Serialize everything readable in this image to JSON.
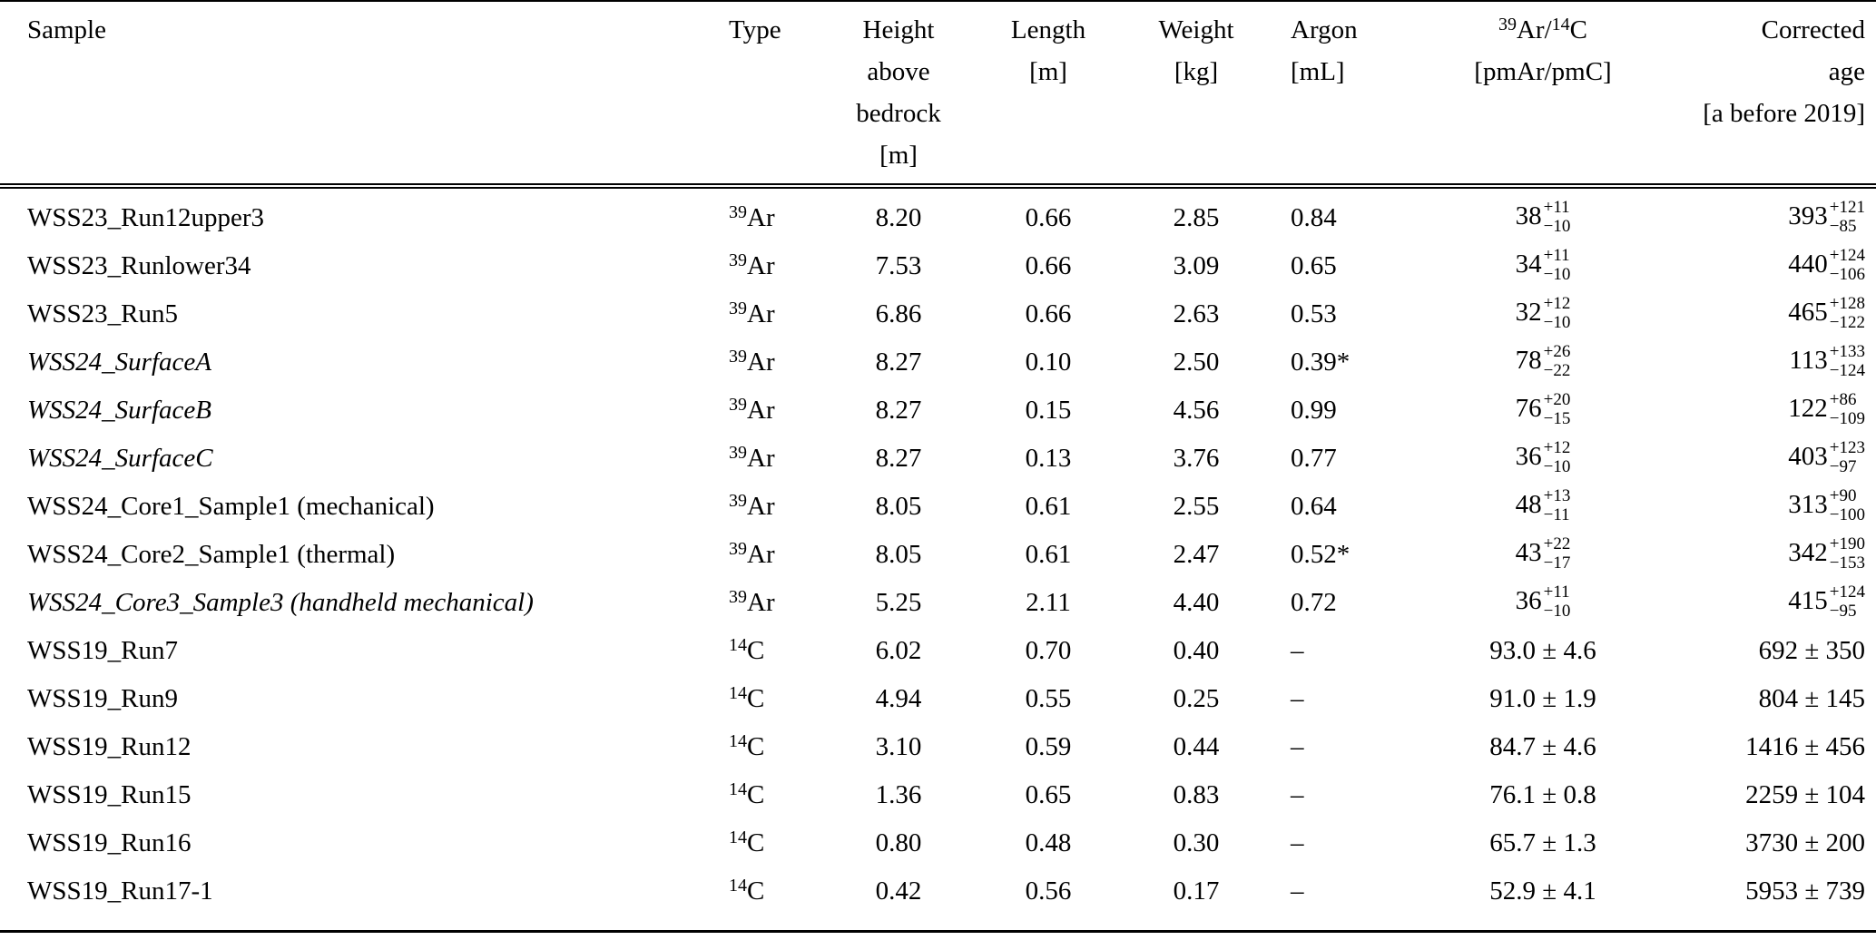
{
  "page": {
    "background_color": "#ffffff",
    "text_color": "#000000",
    "description": "Sample overview table with 39Ar and 14C dating results"
  },
  "table": {
    "columns": [
      {
        "id": "sample",
        "align": "left",
        "header_lines": [
          [
            {
              "t": "Sample"
            }
          ]
        ]
      },
      {
        "id": "type",
        "align": "left",
        "header_lines": [
          [
            {
              "t": "Type"
            }
          ]
        ]
      },
      {
        "id": "height",
        "align": "center",
        "header_lines": [
          [
            {
              "t": "Height"
            }
          ],
          [
            {
              "t": "above"
            }
          ],
          [
            {
              "t": "bedrock"
            }
          ],
          [
            {
              "t": "[m]"
            }
          ]
        ]
      },
      {
        "id": "length",
        "align": "center",
        "header_lines": [
          [
            {
              "t": "Length"
            }
          ],
          [
            {
              "t": "[m]"
            }
          ]
        ]
      },
      {
        "id": "weight",
        "align": "center",
        "header_lines": [
          [
            {
              "t": "Weight"
            }
          ],
          [
            {
              "t": "[kg]"
            }
          ]
        ]
      },
      {
        "id": "argon",
        "align": "left",
        "header_lines": [
          [
            {
              "t": "Argon"
            }
          ],
          [
            {
              "t": "[mL]"
            }
          ]
        ]
      },
      {
        "id": "ratio",
        "align": "center",
        "header_lines": [
          [
            {
              "sup": "39"
            },
            {
              "t": "Ar/"
            },
            {
              "sup": "14"
            },
            {
              "t": "C"
            }
          ],
          [
            {
              "t": "[pmAr/pmC]"
            }
          ]
        ]
      },
      {
        "id": "age",
        "align": "right",
        "header_lines": [
          [
            {
              "t": "Corrected"
            }
          ],
          [
            {
              "t": "age"
            }
          ],
          [
            {
              "t": "[a before 2019]"
            }
          ]
        ]
      }
    ],
    "rows": [
      {
        "cells": [
          {
            "text": "WSS23_Run12upper3",
            "italic": false
          },
          {
            "tokens": [
              {
                "sup": "39"
              },
              {
                "t": "Ar"
              }
            ]
          },
          {
            "text": "8.20"
          },
          {
            "text": "0.66"
          },
          {
            "text": "2.85"
          },
          {
            "text": "0.84"
          },
          {
            "text": "38",
            "plus": "+11",
            "minus": "−10"
          },
          {
            "text": "393",
            "plus": "+121",
            "minus": "−85"
          }
        ]
      },
      {
        "cells": [
          {
            "text": "WSS23_Runlower34",
            "italic": false
          },
          {
            "tokens": [
              {
                "sup": "39"
              },
              {
                "t": "Ar"
              }
            ]
          },
          {
            "text": "7.53"
          },
          {
            "text": "0.66"
          },
          {
            "text": "3.09"
          },
          {
            "text": "0.65"
          },
          {
            "text": "34",
            "plus": "+11",
            "minus": "−10"
          },
          {
            "text": "440",
            "plus": "+124",
            "minus": "−106"
          }
        ]
      },
      {
        "cells": [
          {
            "text": "WSS23_Run5",
            "italic": false
          },
          {
            "tokens": [
              {
                "sup": "39"
              },
              {
                "t": "Ar"
              }
            ]
          },
          {
            "text": "6.86"
          },
          {
            "text": "0.66"
          },
          {
            "text": "2.63"
          },
          {
            "text": "0.53"
          },
          {
            "text": "32",
            "plus": "+12",
            "minus": "−10"
          },
          {
            "text": "465",
            "plus": "+128",
            "minus": "−122"
          }
        ]
      },
      {
        "cells": [
          {
            "text": "WSS24_SurfaceA",
            "italic": true
          },
          {
            "tokens": [
              {
                "sup": "39"
              },
              {
                "t": "Ar"
              }
            ]
          },
          {
            "text": "8.27"
          },
          {
            "text": "0.10"
          },
          {
            "text": "2.50"
          },
          {
            "text": "0.39*"
          },
          {
            "text": "78",
            "plus": "+26",
            "minus": "−22"
          },
          {
            "text": "113",
            "plus": "+133",
            "minus": "−124"
          }
        ]
      },
      {
        "cells": [
          {
            "text": "WSS24_SurfaceB",
            "italic": true
          },
          {
            "tokens": [
              {
                "sup": "39"
              },
              {
                "t": "Ar"
              }
            ]
          },
          {
            "text": "8.27"
          },
          {
            "text": "0.15"
          },
          {
            "text": "4.56"
          },
          {
            "text": "0.99"
          },
          {
            "text": "76",
            "plus": "+20",
            "minus": "−15"
          },
          {
            "text": "122",
            "plus": "+86",
            "minus": "−109"
          }
        ]
      },
      {
        "cells": [
          {
            "text": "WSS24_SurfaceC",
            "italic": true
          },
          {
            "tokens": [
              {
                "sup": "39"
              },
              {
                "t": "Ar"
              }
            ]
          },
          {
            "text": "8.27"
          },
          {
            "text": "0.13"
          },
          {
            "text": "3.76"
          },
          {
            "text": "0.77"
          },
          {
            "text": "36",
            "plus": "+12",
            "minus": "−10"
          },
          {
            "text": "403",
            "plus": "+123",
            "minus": "−97"
          }
        ]
      },
      {
        "cells": [
          {
            "text": "WSS24_Core1_Sample1 (mechanical)",
            "italic": false
          },
          {
            "tokens": [
              {
                "sup": "39"
              },
              {
                "t": "Ar"
              }
            ]
          },
          {
            "text": "8.05"
          },
          {
            "text": "0.61"
          },
          {
            "text": "2.55"
          },
          {
            "text": "0.64"
          },
          {
            "text": "48",
            "plus": "+13",
            "minus": "−11"
          },
          {
            "text": "313",
            "plus": "+90",
            "minus": "−100"
          }
        ]
      },
      {
        "cells": [
          {
            "text": "WSS24_Core2_Sample1 (thermal)",
            "italic": false
          },
          {
            "tokens": [
              {
                "sup": "39"
              },
              {
                "t": "Ar"
              }
            ]
          },
          {
            "text": "8.05"
          },
          {
            "text": "0.61"
          },
          {
            "text": "2.47"
          },
          {
            "text": "0.52*"
          },
          {
            "text": "43",
            "plus": "+22",
            "minus": "−17"
          },
          {
            "text": "342",
            "plus": "+190",
            "minus": "−153"
          }
        ]
      },
      {
        "cells": [
          {
            "text": "WSS24_Core3_Sample3 (handheld mechanical)",
            "italic": true
          },
          {
            "tokens": [
              {
                "sup": "39"
              },
              {
                "t": "Ar"
              }
            ]
          },
          {
            "text": "5.25"
          },
          {
            "text": "2.11"
          },
          {
            "text": "4.40"
          },
          {
            "text": "0.72"
          },
          {
            "text": "36",
            "plus": "+11",
            "minus": "−10"
          },
          {
            "text": "415",
            "plus": "+124",
            "minus": "−95"
          }
        ]
      },
      {
        "cells": [
          {
            "text": "WSS19_Run7",
            "italic": false
          },
          {
            "tokens": [
              {
                "sup": "14"
              },
              {
                "t": "C"
              }
            ]
          },
          {
            "text": "6.02"
          },
          {
            "text": "0.70"
          },
          {
            "text": "0.40"
          },
          {
            "text": "–"
          },
          {
            "text": "93.0 ± 4.6"
          },
          {
            "text": "692 ± 350"
          }
        ]
      },
      {
        "cells": [
          {
            "text": "WSS19_Run9",
            "italic": false
          },
          {
            "tokens": [
              {
                "sup": "14"
              },
              {
                "t": "C"
              }
            ]
          },
          {
            "text": "4.94"
          },
          {
            "text": "0.55"
          },
          {
            "text": "0.25"
          },
          {
            "text": "–"
          },
          {
            "text": "91.0 ± 1.9"
          },
          {
            "text": "804 ± 145"
          }
        ]
      },
      {
        "cells": [
          {
            "text": "WSS19_Run12",
            "italic": false
          },
          {
            "tokens": [
              {
                "sup": "14"
              },
              {
                "t": "C"
              }
            ]
          },
          {
            "text": "3.10"
          },
          {
            "text": "0.59"
          },
          {
            "text": "0.44"
          },
          {
            "text": "–"
          },
          {
            "text": "84.7 ± 4.6"
          },
          {
            "text": "1416 ± 456"
          }
        ]
      },
      {
        "cells": [
          {
            "text": "WSS19_Run15",
            "italic": false
          },
          {
            "tokens": [
              {
                "sup": "14"
              },
              {
                "t": "C"
              }
            ]
          },
          {
            "text": "1.36"
          },
          {
            "text": "0.65"
          },
          {
            "text": "0.83"
          },
          {
            "text": "–"
          },
          {
            "text": "76.1 ± 0.8"
          },
          {
            "text": "2259 ± 104"
          }
        ]
      },
      {
        "cells": [
          {
            "text": "WSS19_Run16",
            "italic": false
          },
          {
            "tokens": [
              {
                "sup": "14"
              },
              {
                "t": "C"
              }
            ]
          },
          {
            "text": "0.80"
          },
          {
            "text": "0.48"
          },
          {
            "text": "0.30"
          },
          {
            "text": "–"
          },
          {
            "text": "65.7 ± 1.3"
          },
          {
            "text": "3730 ± 200"
          }
        ]
      },
      {
        "cells": [
          {
            "text": "WSS19_Run17-1",
            "italic": false
          },
          {
            "tokens": [
              {
                "sup": "14"
              },
              {
                "t": "C"
              }
            ]
          },
          {
            "text": "0.42"
          },
          {
            "text": "0.56"
          },
          {
            "text": "0.17"
          },
          {
            "text": "–"
          },
          {
            "text": "52.9 ± 4.1"
          },
          {
            "text": "5953 ± 739"
          }
        ]
      }
    ]
  }
}
